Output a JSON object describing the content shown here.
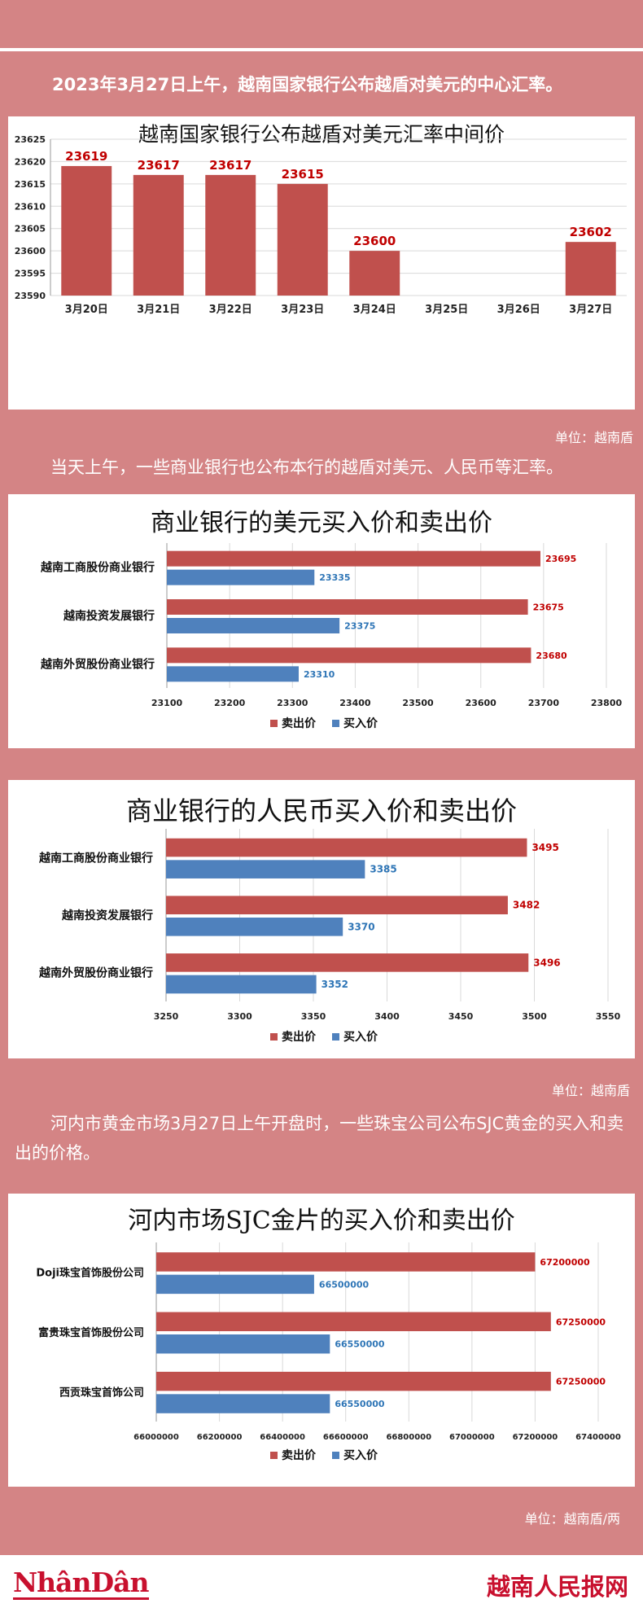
{
  "intro_text": "2023年3月27日上午，越南国家银行公布越盾对美元的中心汇率。",
  "para2_text": "当天上午，一些商业银行也公布本行的越盾对美元、人民币等汇率。",
  "para3_text": "河内市黄金市场3月27日上午开盘时，一些珠宝公司公布SJC黄金的买入和卖出的价格。",
  "unit1": "单位：越南盾",
  "unit2": "单位：越南盾",
  "unit3": "单位：越南盾/两",
  "footer": {
    "logo_left": "NhânDân",
    "logo_right": "越南人民报网"
  },
  "colors": {
    "background": "#d48485",
    "sell": "#c0504d",
    "buy": "#4f81bd",
    "label_red": "#c00000",
    "label_blue": "#2e75b6"
  },
  "chart_data": [
    {
      "type": "bar",
      "title": "越南国家银行公布越盾对美元汇率中间价",
      "categories": [
        "3月20日",
        "3月21日",
        "3月22日",
        "3月23日",
        "3月24日",
        "3月25日",
        "3月26日",
        "3月27日"
      ],
      "values": [
        23619,
        23617,
        23617,
        23615,
        23600,
        null,
        null,
        23602
      ],
      "data_labels": [
        "23619",
        "23617",
        "23617",
        "23615",
        "23600",
        "",
        "",
        "23602"
      ],
      "ylim": [
        23590,
        23625
      ],
      "yticks": [
        "23590",
        "23595",
        "23600",
        "23605",
        "23610",
        "23615",
        "23620",
        "23625"
      ],
      "grid": true
    },
    {
      "type": "bar",
      "orientation": "horizontal",
      "title": "商业银行的美元买入价和卖出价",
      "categories": [
        "越南工商股份商业银行",
        "越南投资发展银行",
        "越南外贸股份商业银行"
      ],
      "series": [
        {
          "name": "卖出价",
          "values": [
            23695,
            23675,
            23680
          ],
          "labels": [
            "23695",
            "23675",
            "23680"
          ]
        },
        {
          "name": "买入价",
          "values": [
            23335,
            23375,
            23310
          ],
          "labels": [
            "23335",
            "23375",
            "23310"
          ]
        }
      ],
      "xlim": [
        23100,
        23800
      ],
      "xticks": [
        "23100",
        "23200",
        "23300",
        "23400",
        "23500",
        "23600",
        "23700",
        "23800"
      ],
      "legend": "bottom",
      "grid": true
    },
    {
      "type": "bar",
      "orientation": "horizontal",
      "title": "商业银行的人民币买入价和卖出价",
      "categories": [
        "越南工商股份商业银行",
        "越南投资发展银行",
        "越南外贸股份商业银行"
      ],
      "series": [
        {
          "name": "卖出价",
          "values": [
            3495,
            3482,
            3496
          ],
          "labels": [
            "3495",
            "3482",
            "3496"
          ]
        },
        {
          "name": "买入价",
          "values": [
            3385,
            3370,
            3352
          ],
          "labels": [
            "3385",
            "3370",
            "3352"
          ]
        }
      ],
      "xlim": [
        3250,
        3550
      ],
      "xticks": [
        "3250",
        "3300",
        "3350",
        "3400",
        "3450",
        "3500",
        "3550"
      ],
      "legend": "bottom",
      "grid": true
    },
    {
      "type": "bar",
      "orientation": "horizontal",
      "title": "河内市场SJC金片的买入价和卖出价",
      "categories": [
        "Doji珠宝首饰股份公司",
        "富贵珠宝首饰股份公司",
        "西贡珠宝首饰公司"
      ],
      "series": [
        {
          "name": "卖出价",
          "values": [
            67200000,
            67250000,
            67250000
          ],
          "labels": [
            "67200000",
            "67250000",
            "67250000"
          ]
        },
        {
          "name": "买入价",
          "values": [
            66500000,
            66550000,
            66550000
          ],
          "labels": [
            "66500000",
            "66550000",
            "66550000"
          ]
        }
      ],
      "xlim": [
        66000000,
        67400000
      ],
      "xticks": [
        "66000000",
        "66200000",
        "66400000",
        "66600000",
        "66800000",
        "67000000",
        "67200000",
        "67400000"
      ],
      "legend": "bottom",
      "grid": true
    }
  ]
}
